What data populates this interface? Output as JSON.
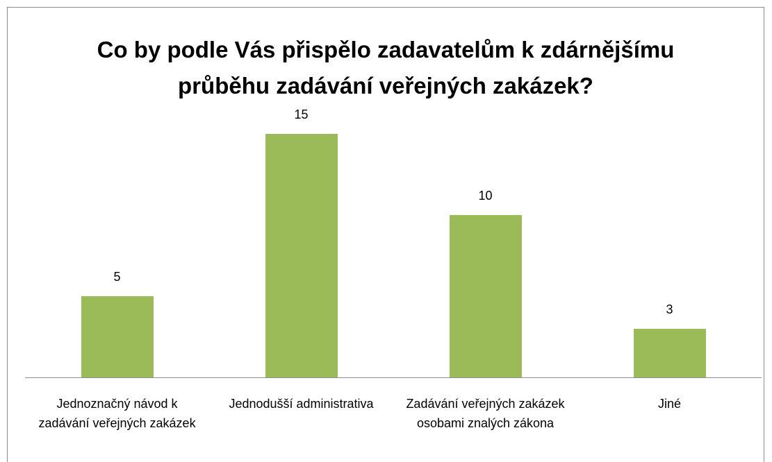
{
  "chart_data": {
    "type": "bar",
    "title": "Co by podle Vás přispělo zadavatelům k zdárnějšímu průběhu zadávání veřejných zakázek?",
    "categories": [
      "Jednoznačný návod k zadávání veřejných zakázek",
      "Jednodušší administrativa",
      "Zadávání veřejných zakázek osobami znalých zákona",
      "Jiné"
    ],
    "values": [
      5,
      15,
      10,
      3
    ],
    "color": "#9bbb59"
  }
}
